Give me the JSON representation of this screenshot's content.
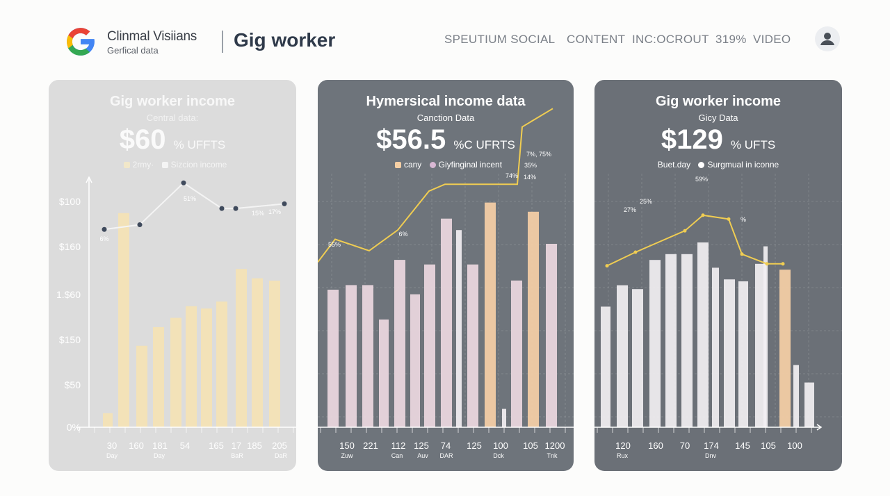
{
  "header": {
    "brand_name": "Clinmal Visiians",
    "brand_sub": "Gerfical data",
    "page_title": "Gig worker",
    "nav": [
      {
        "label": "SPEUTIUM SOCIAL"
      },
      {
        "label": "CONTENT"
      },
      {
        "label": "INC:OCROUT"
      },
      {
        "label": "319%"
      },
      {
        "label": "VIDEO"
      }
    ],
    "logo_icon": "google-g-logo",
    "avatar_icon": "user-avatar-icon"
  },
  "colors": {
    "panel1_bg": "#dcdcdc",
    "panel2_bg": "#6e747b",
    "panel3_bg": "#6b7077",
    "bar_yellow": "#f4e2b4",
    "bar_orange": "#f6cfa6",
    "bar_pink": "#ecd8df",
    "bar_white": "#f2eff2",
    "line_yellow": "#f0cd52",
    "line_white": "#f4f4f4"
  },
  "cards": [
    {
      "title": "Gig worker income",
      "subtitle": "Central data:",
      "value": "$60",
      "unit": "% UFFTS",
      "legend": [
        "2rmy·",
        "Sizcion income"
      ]
    },
    {
      "title": "Hymersical income data",
      "subtitle": "Canction Data",
      "value": "$56.5",
      "unit": "%C UFRTS",
      "legend": [
        "cany",
        "Giyfinginal incent"
      ]
    },
    {
      "title": "Gig worker income",
      "subtitle": "Gicy Data",
      "value": "$129",
      "unit": "% UFTS",
      "legend": [
        "Buet.day",
        "Surgmual in iconne"
      ]
    }
  ],
  "chart_data": [
    {
      "type": "bar",
      "title": "Gig worker income",
      "y_tick_labels": [
        "$100",
        "$160",
        "1.$60",
        "$150",
        "$50",
        "0%"
      ],
      "x_tick_labels": [
        "30",
        "160",
        "181",
        "54",
        "165",
        "17",
        "185",
        "205"
      ],
      "x_sub_labels": [
        "Day",
        "Day",
        "BaR",
        "DaR"
      ],
      "series": [
        {
          "name": "2rmy·",
          "values": [
            6,
            92,
            35,
            43,
            47,
            52,
            51,
            54,
            68,
            64,
            63
          ]
        },
        {
          "name": "Sizcion income",
          "values": [
            85,
            87,
            105,
            94,
            94,
            96
          ]
        }
      ],
      "line_labels": [
        "6%",
        "51%",
        "15%",
        "17%"
      ]
    },
    {
      "type": "bar",
      "title": "Hymersical income data",
      "y_tick_labels": [],
      "x_tick_labels": [
        "150",
        "221",
        "112",
        "125",
        "74",
        "125",
        "100",
        "105",
        "1200"
      ],
      "x_sub_labels": [
        "Zuw",
        "Can",
        "Auv",
        "DAR",
        "Dck",
        "Tnk"
      ],
      "series": [
        {
          "name": "cany",
          "values": [
            60,
            62,
            62,
            47,
            73,
            58,
            71,
            91,
            86,
            71,
            98,
            8,
            64,
            94,
            80
          ]
        },
        {
          "name": "Giyfinginal incent",
          "values": [
            72,
            82,
            77,
            86,
            103,
            106,
            106,
            106,
            131,
            139
          ]
        }
      ],
      "line_labels": [
        "55%",
        "6%",
        "74%",
        "35%",
        "14%",
        "7%, 75%"
      ]
    },
    {
      "type": "bar",
      "title": "Gig worker income",
      "y_tick_labels": [],
      "x_tick_labels": [
        "120",
        "160",
        "70",
        "174",
        "145",
        "105",
        "100"
      ],
      "x_sub_labels": [
        "Rux",
        "Dnv"
      ],
      "series": [
        {
          "name": "Buet.day",
          "values": [
            62,
            73,
            71,
            86,
            89,
            89,
            95,
            82,
            76,
            75,
            84,
            93,
            81,
            32,
            23
          ]
        },
        {
          "name": "Surgmual in iconne",
          "values": [
            83,
            90,
            101,
            109,
            107,
            89,
            84,
            84
          ]
        }
      ],
      "line_labels": [
        "27%",
        "25%",
        "59%",
        "%"
      ]
    }
  ]
}
